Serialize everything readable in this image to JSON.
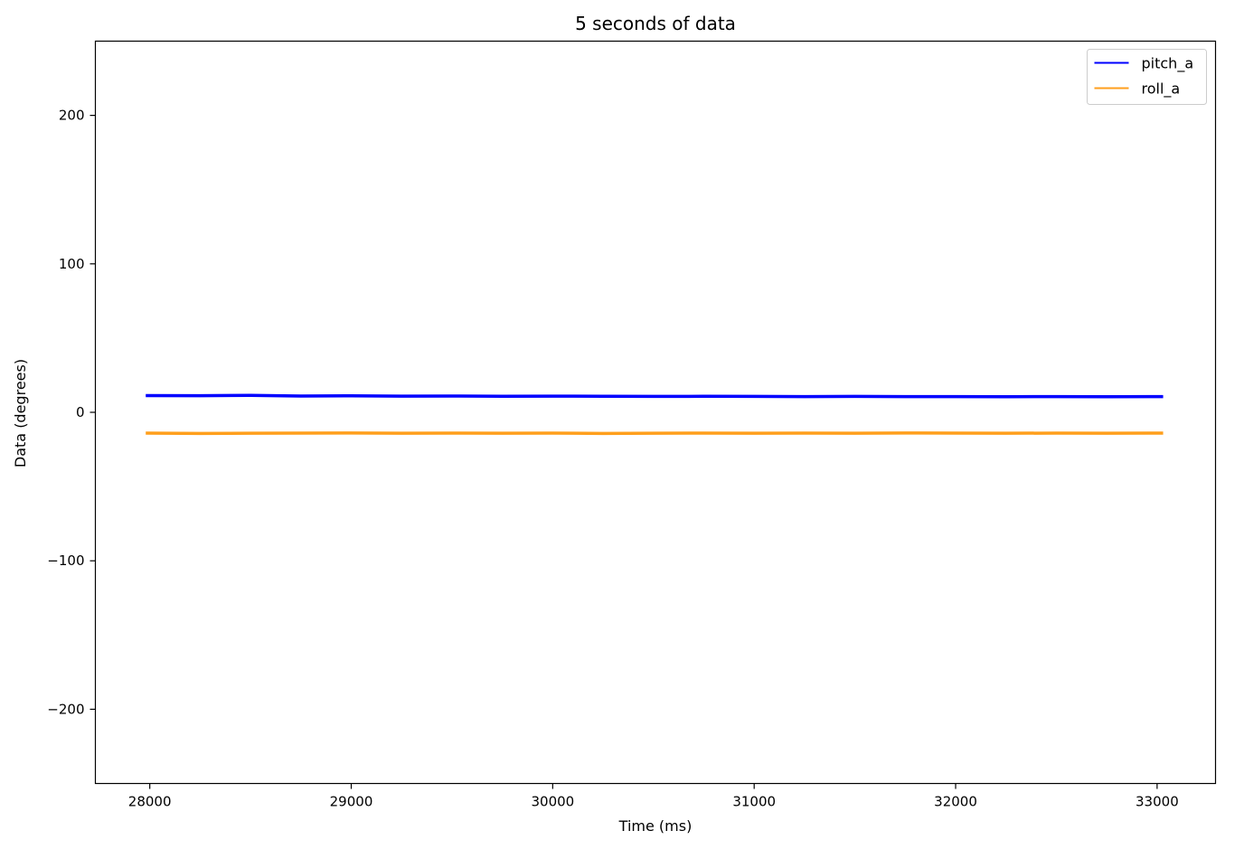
{
  "chart_data": {
    "type": "line",
    "title": "5 seconds of data",
    "xlabel": "Time (ms)",
    "ylabel": "Data (degrees)",
    "xlim": [
      27730,
      33290
    ],
    "ylim": [
      -250,
      250
    ],
    "xticks": [
      28000,
      29000,
      30000,
      31000,
      32000,
      33000
    ],
    "xtick_labels": [
      "28000",
      "29000",
      "30000",
      "31000",
      "32000",
      "33000"
    ],
    "yticks": [
      -200,
      -100,
      0,
      100,
      200
    ],
    "ytick_labels": [
      "−200",
      "−100",
      "0",
      "100",
      "200"
    ],
    "grid": false,
    "legend_position": "top-right",
    "series": [
      {
        "name": "pitch_a",
        "color": "#0000ff",
        "x": [
          27980,
          28250,
          28500,
          28750,
          29000,
          29250,
          29500,
          29750,
          30000,
          30250,
          30500,
          30750,
          31000,
          31250,
          31500,
          31750,
          32000,
          32250,
          32500,
          32750,
          33030
        ],
        "y": [
          11.3,
          11.2,
          11.4,
          11.0,
          11.1,
          10.9,
          11.0,
          10.8,
          10.9,
          10.8,
          10.7,
          10.8,
          10.7,
          10.6,
          10.7,
          10.6,
          10.6,
          10.5,
          10.6,
          10.5,
          10.6
        ]
      },
      {
        "name": "roll_a",
        "color": "#ff9f1c",
        "x": [
          27980,
          28250,
          28500,
          28750,
          29000,
          29250,
          29500,
          29750,
          30000,
          30250,
          30500,
          30750,
          31000,
          31250,
          31500,
          31750,
          32000,
          32250,
          32500,
          32750,
          33030
        ],
        "y": [
          -14.0,
          -14.2,
          -14.1,
          -14.0,
          -13.9,
          -14.1,
          -14.0,
          -14.1,
          -14.0,
          -14.2,
          -14.1,
          -14.0,
          -14.1,
          -14.0,
          -14.1,
          -13.9,
          -14.0,
          -14.1,
          -14.0,
          -14.1,
          -14.0
        ]
      }
    ]
  }
}
